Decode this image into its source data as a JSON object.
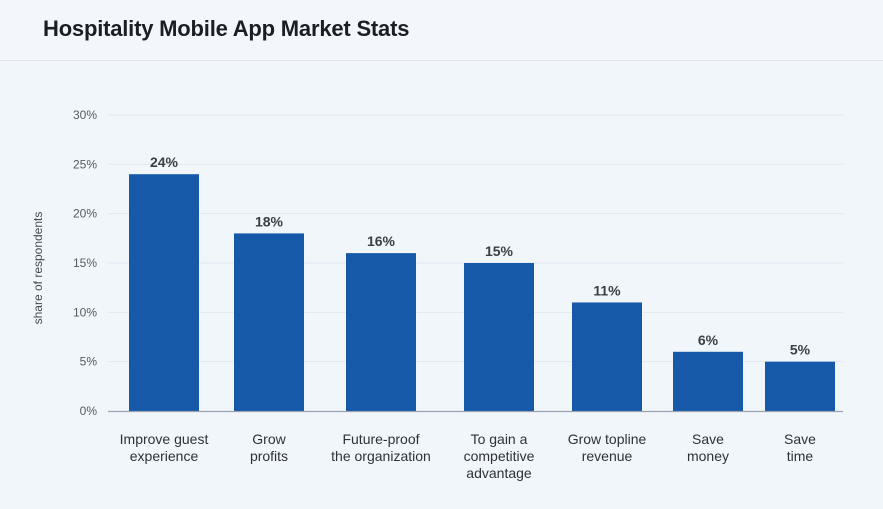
{
  "header": {
    "title": "Hospitality Mobile App Market Stats"
  },
  "chart_data": {
    "type": "bar",
    "title": "Hospitality Mobile App Market Stats",
    "xlabel": "",
    "ylabel": "share of respondents",
    "ylim": [
      0,
      30
    ],
    "yticks": [
      "0%",
      "5%",
      "10%",
      "15%",
      "20%",
      "25%",
      "30%"
    ],
    "ytick_values": [
      0,
      5,
      10,
      15,
      20,
      25,
      30
    ],
    "grid": true,
    "categories": [
      [
        "Improve guest",
        "experience"
      ],
      [
        "Grow",
        "profits"
      ],
      [
        "Future-proof",
        "the organization"
      ],
      [
        "To gain a",
        "competitive",
        "advantage"
      ],
      [
        "Grow topline",
        "revenue"
      ],
      [
        "Save",
        "money"
      ],
      [
        "Save",
        "time"
      ]
    ],
    "values": [
      24,
      18,
      16,
      15,
      11,
      6,
      5
    ],
    "data_labels": [
      "24%",
      "18%",
      "16%",
      "15%",
      "11%",
      "6%",
      "5%"
    ],
    "bar_color": "#1559a8",
    "grid_color": "#e1e8f0",
    "axis_color": "#9aa3ad"
  }
}
